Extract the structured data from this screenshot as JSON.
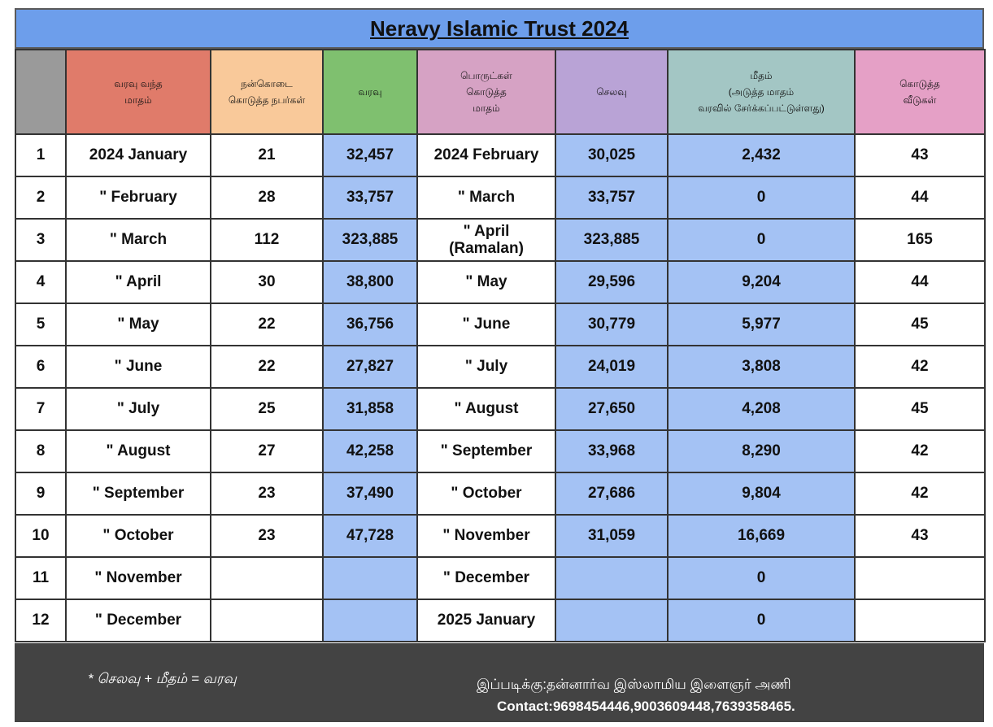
{
  "title": "Neravy Islamic Trust  2024",
  "headers": {
    "num": "",
    "month_in": "வரவு வந்த\nமாதம்",
    "donors": "நன்கொடை\nகொடுத்த நபர்கள்",
    "income": "வரவு",
    "month_prov": "பொருட்கள்\nகொடுத்த\nமாதம்",
    "expense": "செலவு",
    "balance": "மீதம்\n(அடுத்த மாதம்\nவரவில் சேர்க்கப்பட்டுள்ளது)",
    "houses": "கொடுத்த\nவீடுகள்"
  },
  "rows": [
    {
      "num": "1",
      "month": "2024 January",
      "donors": "21",
      "income": "32,457",
      "prov": "2024 February",
      "expense": "30,025",
      "balance": "2,432",
      "houses": "43"
    },
    {
      "num": "2",
      "month": "\"   February",
      "donors": "28",
      "income": "33,757",
      "prov": "\" March",
      "expense": "33,757",
      "balance": "0",
      "houses": "44"
    },
    {
      "num": "3",
      "month": "\"   March",
      "donors": "112",
      "income": "323,885",
      "prov": "\" April\n(Ramalan)",
      "expense": "323,885",
      "balance": "0",
      "houses": "165"
    },
    {
      "num": "4",
      "month": "\"   April",
      "donors": "30",
      "income": "38,800",
      "prov": "\" May",
      "expense": "29,596",
      "balance": "9,204",
      "houses": "44"
    },
    {
      "num": "5",
      "month": "\"   May",
      "donors": "22",
      "income": "36,756",
      "prov": "\" June",
      "expense": "30,779",
      "balance": "5,977",
      "houses": "45"
    },
    {
      "num": "6",
      "month": "\"   June",
      "donors": "22",
      "income": "27,827",
      "prov": "\"  July",
      "expense": "24,019",
      "balance": "3,808",
      "houses": "42"
    },
    {
      "num": "7",
      "month": "\"   July",
      "donors": "25",
      "income": "31,858",
      "prov": "\" August",
      "expense": "27,650",
      "balance": "4,208",
      "houses": "45"
    },
    {
      "num": "8",
      "month": "\"   August",
      "donors": "27",
      "income": "42,258",
      "prov": "\" September",
      "expense": "33,968",
      "balance": "8,290",
      "houses": "42"
    },
    {
      "num": "9",
      "month": "\"   September",
      "donors": "23",
      "income": "37,490",
      "prov": "\" October",
      "expense": "27,686",
      "balance": "9,804",
      "houses": "42"
    },
    {
      "num": "10",
      "month": "\"   October",
      "donors": "23",
      "income": "47,728",
      "prov": "\" November",
      "expense": "31,059",
      "balance": "16,669",
      "houses": "43"
    },
    {
      "num": "11",
      "month": "\"   November",
      "donors": "",
      "income": "",
      "prov": "\" December",
      "expense": "",
      "balance": "0",
      "houses": ""
    },
    {
      "num": "12",
      "month": "\"   December",
      "donors": "",
      "income": "",
      "prov": "2025 January",
      "expense": "",
      "balance": "0",
      "houses": ""
    }
  ],
  "footer": {
    "note": "* செலவு + மீதம் = வரவு",
    "credit": "இப்படிக்கு:தன்னார்வ இஸ்லாமிய இளைஞர் அணி",
    "contact": "Contact:9698454446,9003609448,7639358465."
  },
  "colors": {
    "title_bg": "#6d9eeb",
    "blue_cell": "#a4c2f4",
    "footer_bg": "#434343"
  }
}
